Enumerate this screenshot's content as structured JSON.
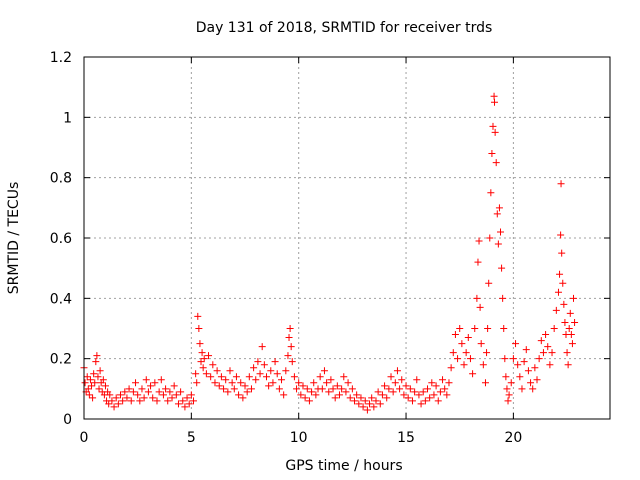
{
  "chart_data": {
    "type": "scatter",
    "title": "Day 131 of 2018, SRMTID for receiver trds",
    "xlabel": "GPS time / hours",
    "ylabel": "SRMTID / TECUs",
    "xlim": [
      0,
      24.5
    ],
    "ylim": [
      0,
      1.2
    ],
    "xticks": [
      0,
      5,
      10,
      15,
      20
    ],
    "xtick_labels": [
      "0",
      "5",
      "10",
      "15",
      "20"
    ],
    "yticks": [
      0,
      0.2,
      0.4,
      0.6,
      0.8,
      1,
      1.2
    ],
    "ytick_labels": [
      "0",
      "0.2",
      "0.4",
      "0.6",
      "0.8",
      "1",
      "1.2"
    ],
    "grid": true,
    "marker": "plus",
    "color": "#ff0000",
    "series": [
      {
        "name": "SRMTID",
        "points": [
          [
            0.0,
            0.17
          ],
          [
            0.05,
            0.12
          ],
          [
            0.1,
            0.09
          ],
          [
            0.15,
            0.14
          ],
          [
            0.2,
            0.1
          ],
          [
            0.25,
            0.08
          ],
          [
            0.3,
            0.13
          ],
          [
            0.35,
            0.11
          ],
          [
            0.4,
            0.07
          ],
          [
            0.45,
            0.15
          ],
          [
            0.5,
            0.12
          ],
          [
            0.55,
            0.19
          ],
          [
            0.6,
            0.21
          ],
          [
            0.65,
            0.14
          ],
          [
            0.7,
            0.1
          ],
          [
            0.75,
            0.16
          ],
          [
            0.8,
            0.12
          ],
          [
            0.85,
            0.09
          ],
          [
            0.9,
            0.13
          ],
          [
            0.95,
            0.08
          ],
          [
            1.0,
            0.11
          ],
          [
            1.05,
            0.06
          ],
          [
            1.1,
            0.09
          ],
          [
            1.15,
            0.05
          ],
          [
            1.2,
            0.08
          ],
          [
            1.3,
            0.06
          ],
          [
            1.4,
            0.04
          ],
          [
            1.5,
            0.07
          ],
          [
            1.6,
            0.05
          ],
          [
            1.7,
            0.08
          ],
          [
            1.8,
            0.06
          ],
          [
            1.9,
            0.09
          ],
          [
            2.0,
            0.07
          ],
          [
            2.1,
            0.1
          ],
          [
            2.2,
            0.06
          ],
          [
            2.3,
            0.09
          ],
          [
            2.4,
            0.12
          ],
          [
            2.5,
            0.08
          ],
          [
            2.6,
            0.06
          ],
          [
            2.7,
            0.1
          ],
          [
            2.8,
            0.07
          ],
          [
            2.9,
            0.13
          ],
          [
            3.0,
            0.09
          ],
          [
            3.1,
            0.11
          ],
          [
            3.2,
            0.07
          ],
          [
            3.3,
            0.12
          ],
          [
            3.4,
            0.06
          ],
          [
            3.5,
            0.09
          ],
          [
            3.6,
            0.13
          ],
          [
            3.7,
            0.08
          ],
          [
            3.8,
            0.1
          ],
          [
            3.9,
            0.06
          ],
          [
            4.0,
            0.09
          ],
          [
            4.1,
            0.07
          ],
          [
            4.2,
            0.11
          ],
          [
            4.3,
            0.08
          ],
          [
            4.4,
            0.05
          ],
          [
            4.5,
            0.09
          ],
          [
            4.6,
            0.06
          ],
          [
            4.7,
            0.04
          ],
          [
            4.8,
            0.07
          ],
          [
            4.9,
            0.05
          ],
          [
            5.0,
            0.08
          ],
          [
            5.1,
            0.06
          ],
          [
            5.2,
            0.15
          ],
          [
            5.25,
            0.12
          ],
          [
            5.3,
            0.34
          ],
          [
            5.35,
            0.3
          ],
          [
            5.4,
            0.25
          ],
          [
            5.45,
            0.19
          ],
          [
            5.5,
            0.22
          ],
          [
            5.55,
            0.17
          ],
          [
            5.6,
            0.2
          ],
          [
            5.7,
            0.15
          ],
          [
            5.8,
            0.21
          ],
          [
            5.9,
            0.14
          ],
          [
            6.0,
            0.18
          ],
          [
            6.1,
            0.12
          ],
          [
            6.2,
            0.16
          ],
          [
            6.3,
            0.11
          ],
          [
            6.4,
            0.14
          ],
          [
            6.5,
            0.1
          ],
          [
            6.6,
            0.13
          ],
          [
            6.7,
            0.09
          ],
          [
            6.8,
            0.16
          ],
          [
            6.9,
            0.12
          ],
          [
            7.0,
            0.1
          ],
          [
            7.1,
            0.14
          ],
          [
            7.2,
            0.08
          ],
          [
            7.3,
            0.12
          ],
          [
            7.4,
            0.07
          ],
          [
            7.5,
            0.11
          ],
          [
            7.6,
            0.09
          ],
          [
            7.7,
            0.14
          ],
          [
            7.8,
            0.1
          ],
          [
            7.9,
            0.17
          ],
          [
            8.0,
            0.13
          ],
          [
            8.1,
            0.19
          ],
          [
            8.2,
            0.15
          ],
          [
            8.3,
            0.24
          ],
          [
            8.4,
            0.18
          ],
          [
            8.5,
            0.14
          ],
          [
            8.6,
            0.11
          ],
          [
            8.7,
            0.16
          ],
          [
            8.8,
            0.12
          ],
          [
            8.9,
            0.19
          ],
          [
            9.0,
            0.15
          ],
          [
            9.1,
            0.1
          ],
          [
            9.2,
            0.13
          ],
          [
            9.3,
            0.08
          ],
          [
            9.4,
            0.16
          ],
          [
            9.5,
            0.21
          ],
          [
            9.55,
            0.27
          ],
          [
            9.6,
            0.3
          ],
          [
            9.65,
            0.24
          ],
          [
            9.7,
            0.19
          ],
          [
            9.8,
            0.14
          ],
          [
            9.9,
            0.1
          ],
          [
            10.0,
            0.12
          ],
          [
            10.1,
            0.08
          ],
          [
            10.2,
            0.11
          ],
          [
            10.3,
            0.07
          ],
          [
            10.4,
            0.1
          ],
          [
            10.5,
            0.06
          ],
          [
            10.6,
            0.09
          ],
          [
            10.7,
            0.12
          ],
          [
            10.8,
            0.08
          ],
          [
            10.9,
            0.1
          ],
          [
            11.0,
            0.14
          ],
          [
            11.1,
            0.1
          ],
          [
            11.2,
            0.16
          ],
          [
            11.3,
            0.12
          ],
          [
            11.4,
            0.09
          ],
          [
            11.5,
            0.13
          ],
          [
            11.6,
            0.1
          ],
          [
            11.7,
            0.07
          ],
          [
            11.8,
            0.11
          ],
          [
            11.9,
            0.08
          ],
          [
            12.0,
            0.1
          ],
          [
            12.1,
            0.14
          ],
          [
            12.2,
            0.09
          ],
          [
            12.3,
            0.12
          ],
          [
            12.4,
            0.07
          ],
          [
            12.5,
            0.1
          ],
          [
            12.6,
            0.06
          ],
          [
            12.7,
            0.08
          ],
          [
            12.8,
            0.05
          ],
          [
            12.9,
            0.07
          ],
          [
            13.0,
            0.04
          ],
          [
            13.1,
            0.06
          ],
          [
            13.2,
            0.03
          ],
          [
            13.3,
            0.05
          ],
          [
            13.4,
            0.07
          ],
          [
            13.5,
            0.04
          ],
          [
            13.6,
            0.06
          ],
          [
            13.7,
            0.09
          ],
          [
            13.8,
            0.05
          ],
          [
            13.9,
            0.08
          ],
          [
            14.0,
            0.11
          ],
          [
            14.1,
            0.07
          ],
          [
            14.2,
            0.1
          ],
          [
            14.3,
            0.14
          ],
          [
            14.4,
            0.09
          ],
          [
            14.5,
            0.12
          ],
          [
            14.6,
            0.16
          ],
          [
            14.7,
            0.1
          ],
          [
            14.8,
            0.13
          ],
          [
            14.9,
            0.08
          ],
          [
            15.0,
            0.11
          ],
          [
            15.1,
            0.07
          ],
          [
            15.2,
            0.1
          ],
          [
            15.3,
            0.06
          ],
          [
            15.4,
            0.09
          ],
          [
            15.5,
            0.13
          ],
          [
            15.6,
            0.08
          ],
          [
            15.7,
            0.05
          ],
          [
            15.8,
            0.09
          ],
          [
            15.9,
            0.06
          ],
          [
            16.0,
            0.1
          ],
          [
            16.1,
            0.07
          ],
          [
            16.2,
            0.12
          ],
          [
            16.3,
            0.08
          ],
          [
            16.4,
            0.11
          ],
          [
            16.5,
            0.06
          ],
          [
            16.6,
            0.09
          ],
          [
            16.7,
            0.13
          ],
          [
            16.8,
            0.1
          ],
          [
            16.9,
            0.08
          ],
          [
            17.0,
            0.12
          ],
          [
            17.1,
            0.17
          ],
          [
            17.2,
            0.22
          ],
          [
            17.3,
            0.28
          ],
          [
            17.4,
            0.2
          ],
          [
            17.5,
            0.3
          ],
          [
            17.6,
            0.25
          ],
          [
            17.7,
            0.18
          ],
          [
            17.8,
            0.22
          ],
          [
            17.9,
            0.27
          ],
          [
            18.0,
            0.2
          ],
          [
            18.1,
            0.15
          ],
          [
            18.2,
            0.3
          ],
          [
            18.3,
            0.4
          ],
          [
            18.35,
            0.52
          ],
          [
            18.4,
            0.59
          ],
          [
            18.45,
            0.37
          ],
          [
            18.5,
            0.25
          ],
          [
            18.6,
            0.18
          ],
          [
            18.7,
            0.12
          ],
          [
            18.75,
            0.22
          ],
          [
            18.8,
            0.3
          ],
          [
            18.85,
            0.45
          ],
          [
            18.9,
            0.6
          ],
          [
            18.95,
            0.75
          ],
          [
            19.0,
            0.88
          ],
          [
            19.05,
            0.97
          ],
          [
            19.1,
            1.07
          ],
          [
            19.12,
            1.05
          ],
          [
            19.15,
            0.95
          ],
          [
            19.2,
            0.85
          ],
          [
            19.25,
            0.68
          ],
          [
            19.3,
            0.58
          ],
          [
            19.35,
            0.7
          ],
          [
            19.4,
            0.62
          ],
          [
            19.45,
            0.5
          ],
          [
            19.5,
            0.4
          ],
          [
            19.55,
            0.3
          ],
          [
            19.6,
            0.2
          ],
          [
            19.65,
            0.14
          ],
          [
            19.7,
            0.1
          ],
          [
            19.75,
            0.06
          ],
          [
            19.8,
            0.08
          ],
          [
            19.9,
            0.12
          ],
          [
            20.0,
            0.2
          ],
          [
            20.1,
            0.25
          ],
          [
            20.2,
            0.18
          ],
          [
            20.3,
            0.14
          ],
          [
            20.4,
            0.1
          ],
          [
            20.5,
            0.19
          ],
          [
            20.6,
            0.23
          ],
          [
            20.7,
            0.16
          ],
          [
            20.8,
            0.12
          ],
          [
            20.9,
            0.1
          ],
          [
            21.0,
            0.17
          ],
          [
            21.1,
            0.13
          ],
          [
            21.2,
            0.2
          ],
          [
            21.3,
            0.26
          ],
          [
            21.4,
            0.22
          ],
          [
            21.5,
            0.28
          ],
          [
            21.6,
            0.24
          ],
          [
            21.7,
            0.18
          ],
          [
            21.8,
            0.22
          ],
          [
            21.9,
            0.3
          ],
          [
            22.0,
            0.36
          ],
          [
            22.1,
            0.42
          ],
          [
            22.15,
            0.48
          ],
          [
            22.2,
            0.61
          ],
          [
            22.22,
            0.78
          ],
          [
            22.25,
            0.55
          ],
          [
            22.3,
            0.45
          ],
          [
            22.35,
            0.38
          ],
          [
            22.4,
            0.32
          ],
          [
            22.45,
            0.28
          ],
          [
            22.5,
            0.22
          ],
          [
            22.55,
            0.18
          ],
          [
            22.6,
            0.3
          ],
          [
            22.65,
            0.35
          ],
          [
            22.7,
            0.28
          ],
          [
            22.75,
            0.25
          ],
          [
            22.8,
            0.4
          ],
          [
            22.85,
            0.32
          ]
        ]
      }
    ]
  }
}
